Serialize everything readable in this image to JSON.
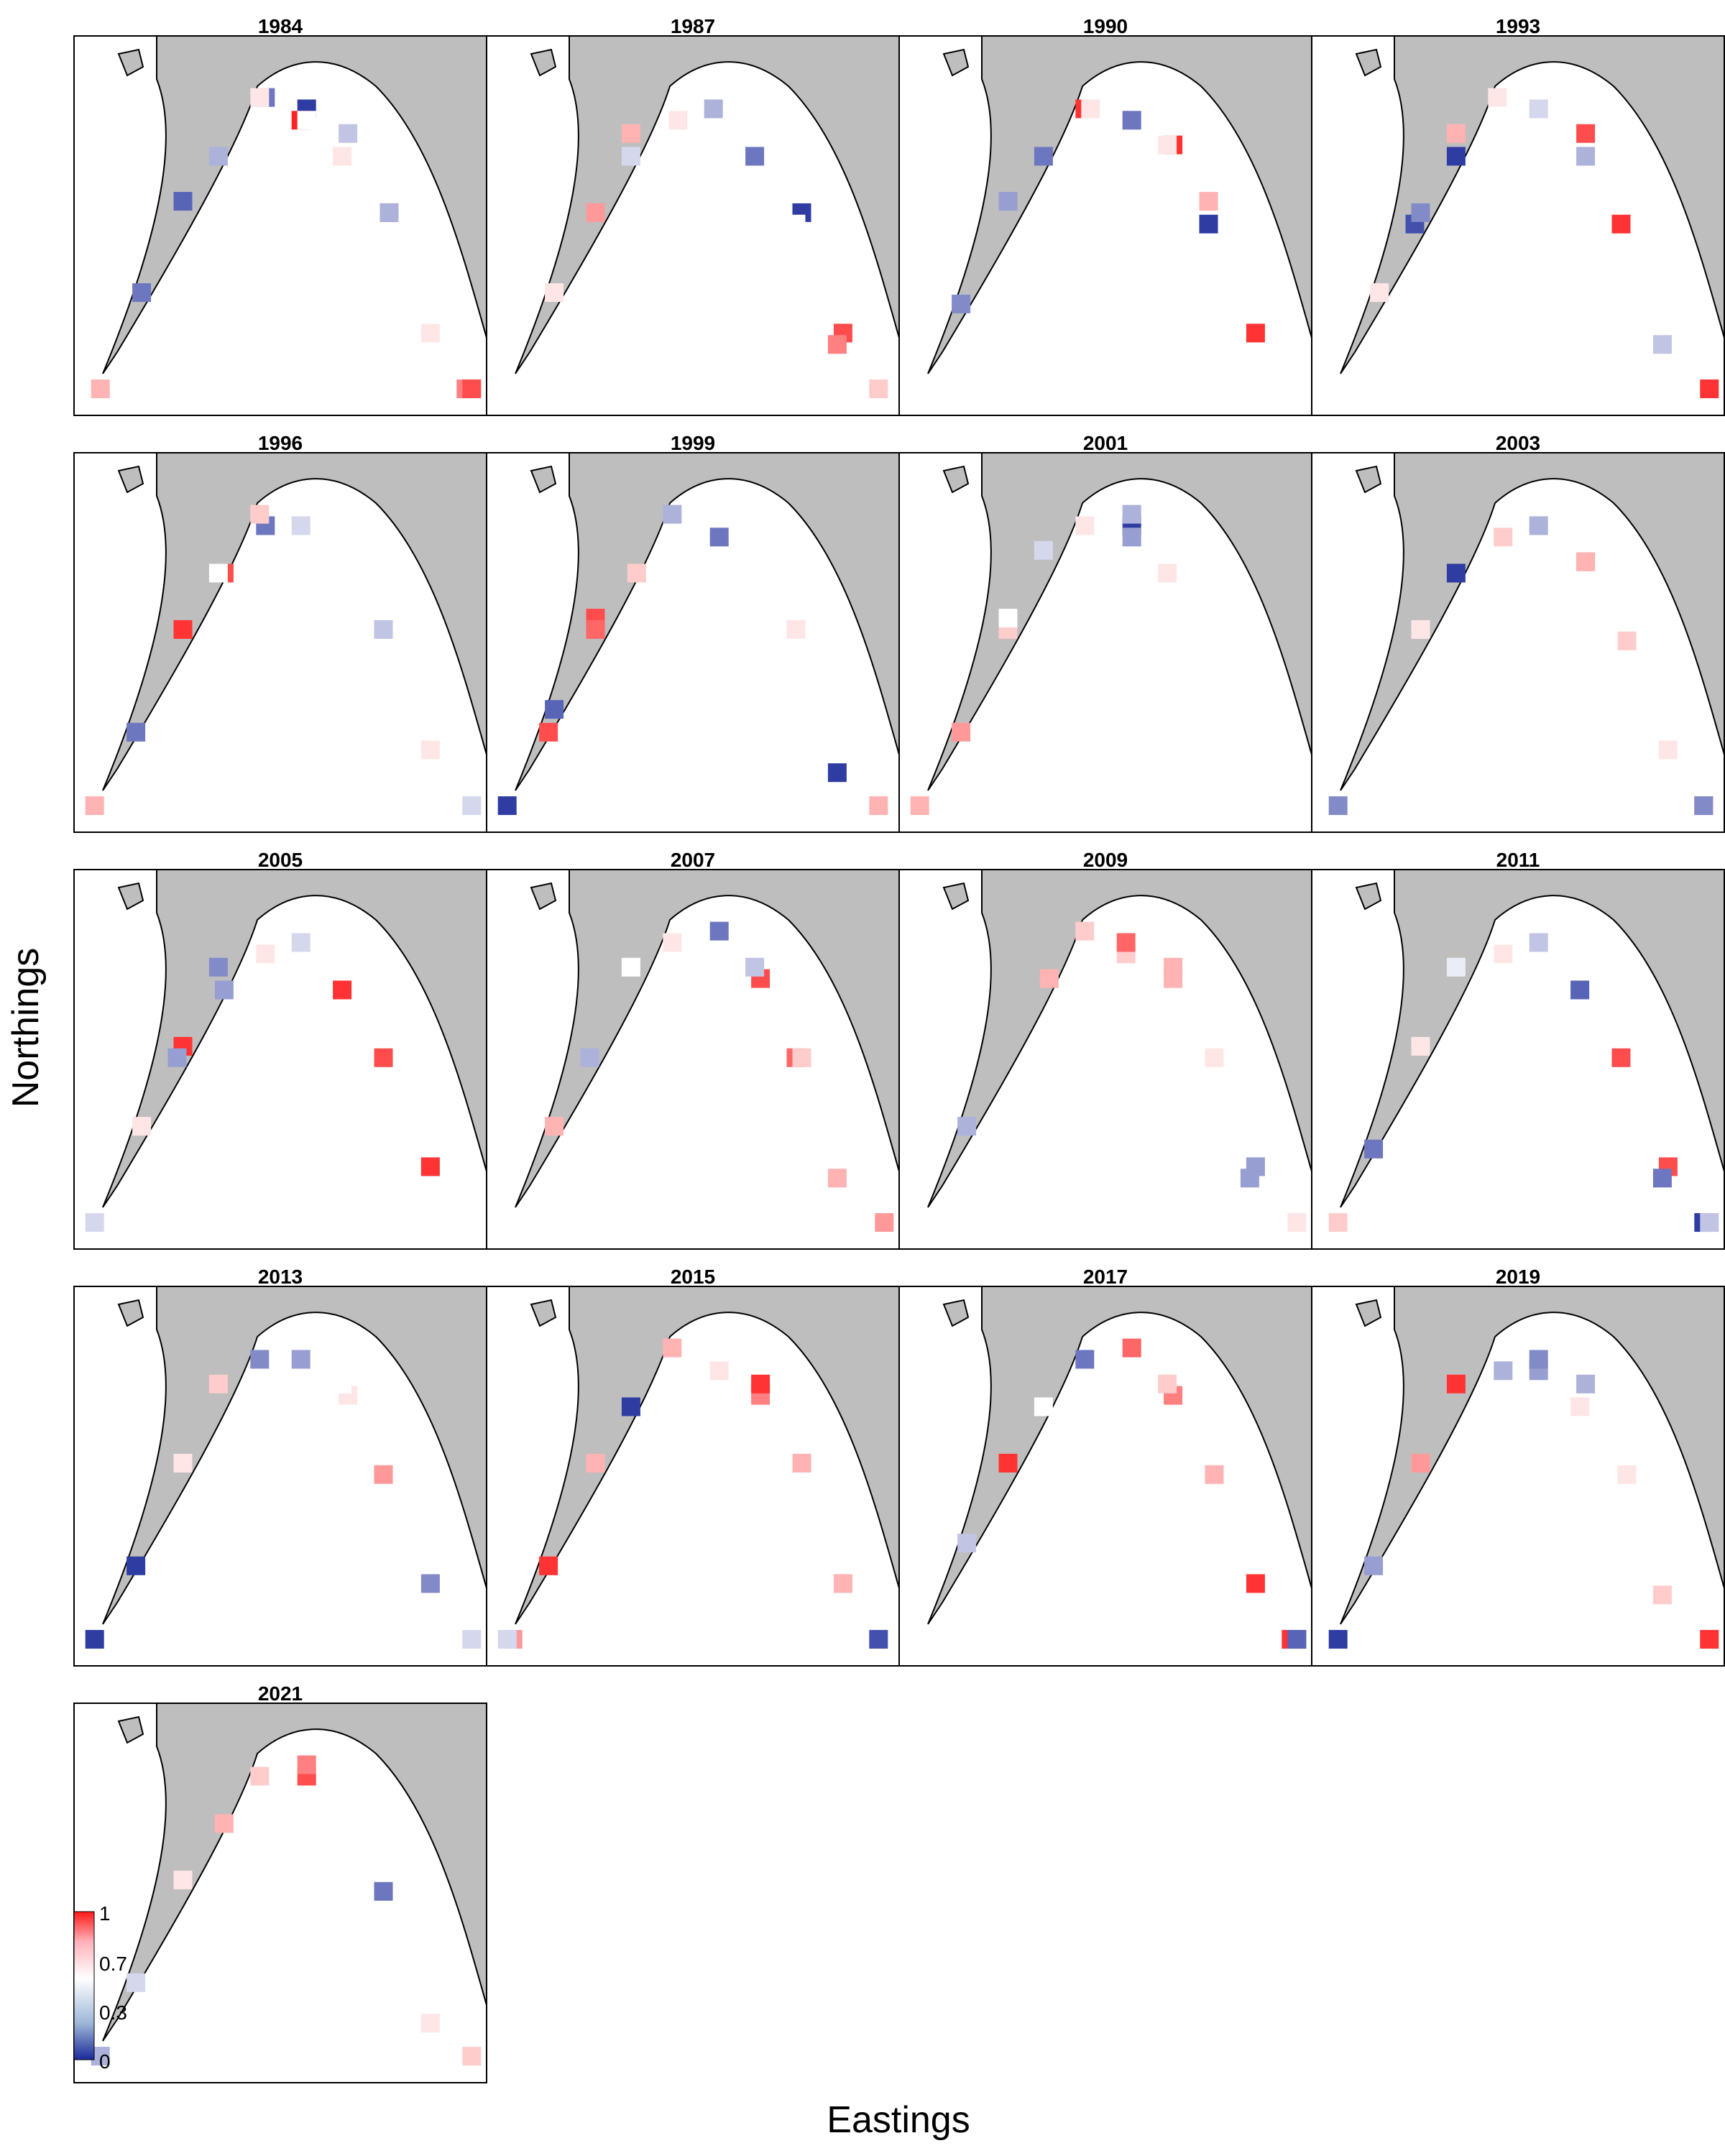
{
  "figure": {
    "xlabel": "Eastings",
    "ylabel": "Northings"
  },
  "colors": {
    "land": "#bebebe",
    "coast": "#000000",
    "low": "#1a2a9a",
    "mid": "#ffffff",
    "high": "#ff1a1a",
    "frame": "#000000"
  },
  "legend": {
    "ticks": [
      "1",
      "0.7",
      "0.3",
      "0"
    ]
  },
  "chart_data": {
    "type": "heatmap",
    "panel_type": "small-multiples map",
    "value_range": [
      0,
      1
    ],
    "colorscale": [
      "#1a2a9a",
      "#ffffff",
      "#ff1a1a"
    ],
    "xlabel": "Eastings",
    "ylabel": "Northings",
    "panels": [
      {
        "year": "1984",
        "cells": [
          [
            5,
            1,
            0.05
          ],
          [
            7,
            1,
            0.95
          ],
          [
            5,
            2,
            0.98
          ],
          [
            6,
            3,
            0.4
          ],
          [
            4,
            3,
            0.2
          ],
          [
            4,
            6,
            0.6
          ],
          [
            1,
            9,
            0.2
          ],
          [
            2,
            9,
            0.15
          ],
          [
            9,
            6,
            0.8
          ],
          [
            0,
            11,
            0.7
          ],
          [
            9,
            7,
            0.9
          ],
          [
            3,
            8,
            0.35
          ],
          [
            6,
            8,
            0.6
          ],
          [
            7,
            7,
            0.35
          ],
          [
            5,
            5,
            0.55
          ],
          [
            8,
            3,
            0.6
          ]
        ]
      },
      {
        "year": "1987",
        "cells": [
          [
            7,
            1,
            0.05
          ],
          [
            6,
            2,
            0.2
          ],
          [
            8,
            3,
            0.9
          ],
          [
            8,
            4,
            0.8
          ],
          [
            7,
            2,
            0.55
          ],
          [
            3,
            6,
            0.7
          ],
          [
            4,
            5,
            0.6
          ],
          [
            2,
            7,
            0.75
          ],
          [
            5,
            4,
            0.35
          ],
          [
            9,
            8,
            0.65
          ],
          [
            1,
            9,
            0.6
          ],
          [
            3,
            8,
            0.45
          ]
        ]
      },
      {
        "year": "1990",
        "cells": [
          [
            6,
            1,
            0.95
          ],
          [
            7,
            2,
            0.05
          ],
          [
            8,
            3,
            0.95
          ],
          [
            4,
            4,
            0.95
          ],
          [
            5,
            5,
            0.2
          ],
          [
            3,
            8,
            0.2
          ],
          [
            2,
            9,
            0.3
          ],
          [
            1,
            10,
            0.25
          ],
          [
            6,
            4,
            0.6
          ],
          [
            7,
            6,
            0.7
          ],
          [
            4,
            7,
            0.6
          ],
          [
            9,
            7,
            0.55
          ]
        ]
      },
      {
        "year": "1993",
        "cells": [
          [
            7,
            2,
            0.95
          ],
          [
            6,
            3,
            0.9
          ],
          [
            9,
            7,
            0.95
          ],
          [
            2,
            8,
            0.1
          ],
          [
            3,
            8,
            0.05
          ],
          [
            2,
            7,
            0.25
          ],
          [
            5,
            4,
            0.45
          ],
          [
            8,
            4,
            0.4
          ],
          [
            4,
            6,
            0.6
          ],
          [
            1,
            9,
            0.6
          ],
          [
            6,
            5,
            0.35
          ],
          [
            3,
            6,
            0.7
          ]
        ]
      },
      {
        "year": "1996",
        "cells": [
          [
            3,
            5,
            0.9
          ],
          [
            2,
            7,
            0.95
          ],
          [
            1,
            8,
            0.2
          ],
          [
            4,
            7,
            0.2
          ],
          [
            5,
            4,
            0.45
          ],
          [
            8,
            3,
            0.6
          ],
          [
            6,
            2,
            0.55
          ],
          [
            0,
            10,
            0.7
          ],
          [
            3,
            8,
            0.55
          ],
          [
            4,
            6,
            0.65
          ],
          [
            9,
            7,
            0.45
          ],
          [
            7,
            4,
            0.4
          ]
        ]
      },
      {
        "year": "1999",
        "cells": [
          [
            1,
            8,
            0.9
          ],
          [
            2,
            9,
            0.9
          ],
          [
            0,
            10,
            0.05
          ],
          [
            1,
            9,
            0.15
          ],
          [
            2,
            7,
            0.85
          ],
          [
            3,
            5,
            0.65
          ],
          [
            5,
            5,
            0.2
          ],
          [
            4,
            6,
            0.35
          ],
          [
            6,
            3,
            0.55
          ],
          [
            8,
            2,
            0.05
          ],
          [
            7,
            4,
            0.6
          ],
          [
            9,
            6,
            0.7
          ]
        ]
      },
      {
        "year": "2001",
        "cells": [
          [
            5,
            1,
            0.05
          ],
          [
            5,
            5,
            0.3
          ],
          [
            1,
            8,
            0.75
          ],
          [
            2,
            7,
            0.65
          ],
          [
            4,
            4,
            0.6
          ],
          [
            3,
            6,
            0.45
          ],
          [
            5,
            3,
            0.35
          ],
          [
            6,
            2,
            0.6
          ],
          [
            0,
            10,
            0.7
          ],
          [
            2,
            9,
            0.55
          ]
        ]
      },
      {
        "year": "2003",
        "cells": [
          [
            0,
            9,
            0.25
          ],
          [
            3,
            8,
            0.05
          ],
          [
            6,
            1,
            0.8
          ],
          [
            8,
            3,
            0.6
          ],
          [
            9,
            4,
            0.85
          ],
          [
            9,
            6,
            0.25
          ],
          [
            5,
            4,
            0.35
          ],
          [
            4,
            5,
            0.65
          ],
          [
            2,
            7,
            0.6
          ],
          [
            7,
            5,
            0.65
          ],
          [
            6,
            7,
            0.7
          ]
        ]
      },
      {
        "year": "2005",
        "cells": [
          [
            6,
            2,
            0.95
          ],
          [
            7,
            2,
            0.9
          ],
          [
            8,
            3,
            0.95
          ],
          [
            3,
            5,
            0.3
          ],
          [
            3,
            6,
            0.25
          ],
          [
            2,
            7,
            0.95
          ],
          [
            2,
            8,
            0.3
          ],
          [
            1,
            9,
            0.6
          ],
          [
            5,
            4,
            0.45
          ],
          [
            9,
            6,
            0.55
          ],
          [
            4,
            5,
            0.6
          ],
          [
            0,
            10,
            0.45
          ]
        ]
      },
      {
        "year": "2007",
        "cells": [
          [
            6,
            1,
            0.9
          ],
          [
            7,
            2,
            0.85
          ],
          [
            5,
            3,
            0.2
          ],
          [
            4,
            4,
            0.6
          ],
          [
            3,
            6,
            0.55
          ],
          [
            2,
            8,
            0.35
          ],
          [
            1,
            9,
            0.7
          ],
          [
            8,
            4,
            0.7
          ],
          [
            9,
            7,
            0.75
          ],
          [
            6,
            6,
            0.4
          ],
          [
            7,
            5,
            0.65
          ]
        ]
      },
      {
        "year": "2009",
        "cells": [
          [
            6,
            1,
            0.7
          ],
          [
            5,
            2,
            0.65
          ],
          [
            8,
            3,
            0.3
          ],
          [
            8,
            4,
            0.3
          ],
          [
            6,
            3,
            0.7
          ],
          [
            5,
            4,
            0.85
          ],
          [
            4,
            6,
            0.65
          ],
          [
            3,
            7,
            0.7
          ],
          [
            1,
            9,
            0.35
          ],
          [
            9,
            7,
            0.6
          ],
          [
            7,
            5,
            0.6
          ]
        ]
      },
      {
        "year": "2011",
        "cells": [
          [
            7,
            2,
            0.9
          ],
          [
            8,
            3,
            0.9
          ],
          [
            8,
            4,
            0.2
          ],
          [
            9,
            4,
            0.05
          ],
          [
            6,
            2,
            0.15
          ],
          [
            5,
            4,
            0.4
          ],
          [
            4,
            5,
            0.6
          ],
          [
            3,
            6,
            0.5
          ],
          [
            2,
            7,
            0.6
          ],
          [
            1,
            8,
            0.2
          ],
          [
            0,
            9,
            0.65
          ],
          [
            9,
            7,
            0.4
          ]
        ]
      },
      {
        "year": "2013",
        "cells": [
          [
            7,
            2,
            0.75
          ],
          [
            8,
            3,
            0.25
          ],
          [
            6,
            1,
            0.6
          ],
          [
            4,
            4,
            0.25
          ],
          [
            5,
            4,
            0.3
          ],
          [
            3,
            6,
            0.65
          ],
          [
            1,
            8,
            0.05
          ],
          [
            2,
            7,
            0.6
          ],
          [
            0,
            10,
            0.05
          ],
          [
            9,
            7,
            0.45
          ],
          [
            6,
            6,
            0.55
          ]
        ]
      },
      {
        "year": "2015",
        "cells": [
          [
            6,
            1,
            0.8
          ],
          [
            7,
            1,
            0.7
          ],
          [
            6,
            3,
            0.95
          ],
          [
            8,
            3,
            0.7
          ],
          [
            9,
            4,
            0.1
          ],
          [
            3,
            8,
            0.05
          ],
          [
            1,
            8,
            0.95
          ],
          [
            2,
            7,
            0.7
          ],
          [
            0,
            9,
            0.75
          ],
          [
            0,
            10,
            0.45
          ],
          [
            5,
            5,
            0.6
          ],
          [
            4,
            6,
            0.7
          ]
        ]
      },
      {
        "year": "2017",
        "cells": [
          [
            6,
            1,
            0.8
          ],
          [
            5,
            3,
            0.85
          ],
          [
            8,
            3,
            0.95
          ],
          [
            9,
            5,
            0.05
          ],
          [
            9,
            6,
            0.95
          ],
          [
            9,
            7,
            0.15
          ],
          [
            4,
            4,
            0.2
          ],
          [
            2,
            7,
            0.95
          ],
          [
            3,
            8,
            0.55
          ],
          [
            1,
            9,
            0.4
          ],
          [
            6,
            6,
            0.65
          ],
          [
            7,
            5,
            0.7
          ]
        ]
      },
      {
        "year": "2019",
        "cells": [
          [
            5,
            2,
            0.3
          ],
          [
            6,
            3,
            0.35
          ],
          [
            5,
            4,
            0.25
          ],
          [
            4,
            5,
            0.35
          ],
          [
            3,
            6,
            0.95
          ],
          [
            2,
            7,
            0.75
          ],
          [
            1,
            8,
            0.3
          ],
          [
            0,
            9,
            0.05
          ],
          [
            9,
            7,
            0.95
          ],
          [
            8,
            4,
            0.65
          ],
          [
            7,
            5,
            0.6
          ],
          [
            6,
            2,
            0.6
          ]
        ]
      },
      {
        "year": "2021",
        "cells": [
          [
            5,
            1,
            0.9
          ],
          [
            6,
            2,
            0.55
          ],
          [
            7,
            2,
            0.2
          ],
          [
            5,
            3,
            0.8
          ],
          [
            4,
            4,
            0.65
          ],
          [
            3,
            5,
            0.7
          ],
          [
            2,
            7,
            0.6
          ],
          [
            1,
            8,
            0.45
          ],
          [
            0,
            9,
            0.35
          ],
          [
            9,
            7,
            0.65
          ],
          [
            8,
            5,
            0.6
          ]
        ]
      }
    ]
  }
}
